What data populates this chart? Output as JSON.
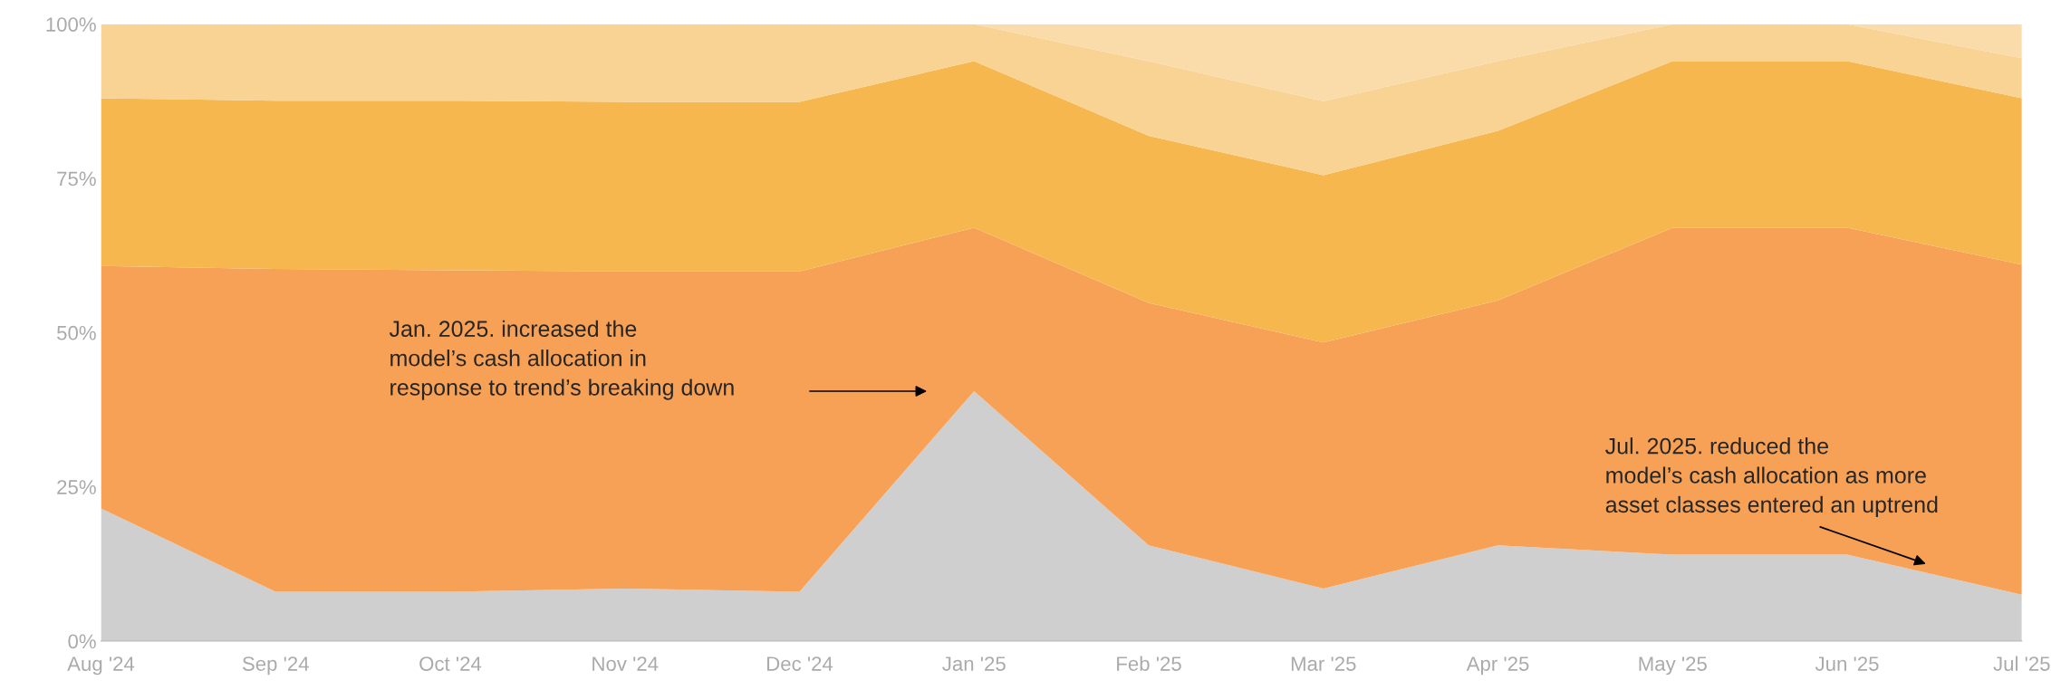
{
  "chart_data": {
    "type": "area",
    "stacked": true,
    "categories": [
      "Aug '24",
      "Sep '24",
      "Oct '24",
      "Nov '24",
      "Dec '24",
      "Jan '25",
      "Feb '25",
      "Mar '25",
      "Apr '25",
      "May '25",
      "Jun '25",
      "Jul '25"
    ],
    "series": [
      {
        "color": "#d0cfd0",
        "values": [
          21.5,
          8,
          8,
          8.5,
          8,
          40.5,
          15.5,
          8.5,
          15.5,
          14,
          14,
          7.5
        ]
      },
      {
        "color": "#f7a156",
        "values": [
          39.3,
          52.3,
          52.1,
          51.4,
          51.9,
          26.5,
          39.3,
          39.9,
          39.7,
          53,
          53,
          53.5
        ]
      },
      {
        "color": "#f6b74f",
        "values": [
          27.2,
          27.3,
          27.5,
          27.5,
          27.5,
          27,
          27.1,
          27.1,
          27.5,
          27,
          27,
          27
        ]
      },
      {
        "color": "#f9d394",
        "values": [
          12,
          12.4,
          12.4,
          12.6,
          12.6,
          6,
          12.1,
          12,
          11.3,
          6,
          6,
          6.5
        ]
      },
      {
        "color": "#fadbaa",
        "values": [
          0,
          0,
          0,
          0,
          0,
          0,
          6,
          12.5,
          6,
          0,
          0,
          5.5
        ]
      }
    ],
    "ylim": [
      0,
      100
    ],
    "yticks": [
      {
        "value": 0,
        "label": "0%"
      },
      {
        "value": 25,
        "label": "25%"
      },
      {
        "value": 50,
        "label": "50%"
      },
      {
        "value": 75,
        "label": "75%"
      },
      {
        "value": 100,
        "label": "100%"
      }
    ],
    "grid": false,
    "legend": false,
    "annotations": [
      "Jan. 2025. increased the\nmodel’s cash allocation in\nresponse to trend’s breaking down",
      "Jul. 2025. reduced the\nmodel’s cash allocation as more\nasset classes entered an uptrend"
    ]
  }
}
